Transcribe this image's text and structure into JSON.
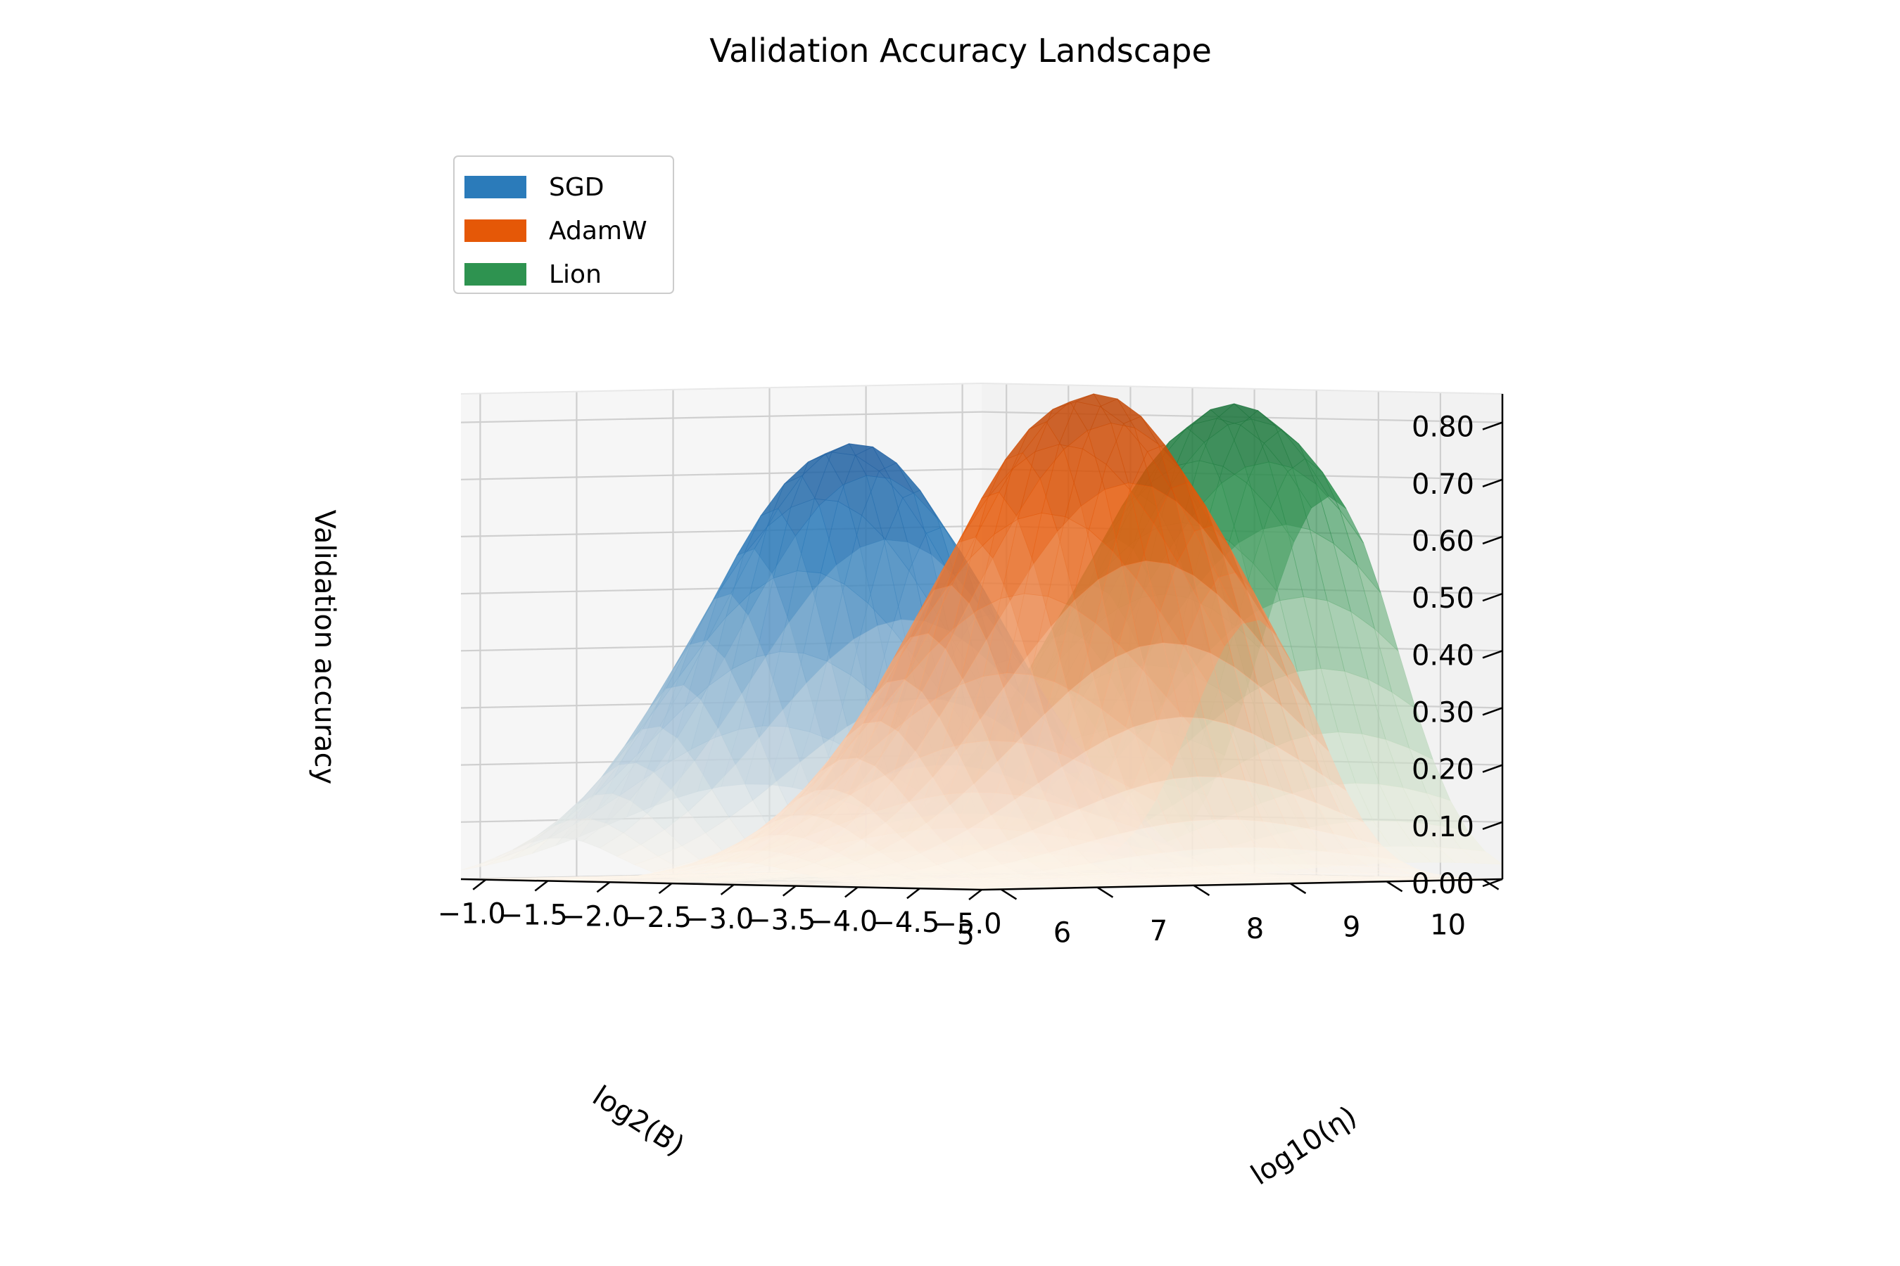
{
  "chart_data": {
    "type": "surface3d",
    "title": "Validation Accuracy Landscape",
    "xlabel": "log10(η)",
    "ylabel": "log2(B)",
    "zlabel": "Validation accuracy",
    "xlim": [
      -5.0,
      -0.8
    ],
    "ylim": [
      4.8,
      10.2
    ],
    "zlim": [
      0.0,
      0.85
    ],
    "x_ticks": [
      -5.0,
      -4.5,
      -4.0,
      -3.5,
      -3.0,
      -2.5,
      -2.0,
      -1.5,
      -1.0
    ],
    "x_tick_labels": [
      "−5.0",
      "−4.5",
      "−4.0",
      "−3.5",
      "−3.0",
      "−2.5",
      "−2.0",
      "−1.5",
      "−1.0"
    ],
    "y_ticks": [
      5,
      6,
      7,
      8,
      9,
      10
    ],
    "y_tick_labels": [
      "5",
      "6",
      "7",
      "8",
      "9",
      "10"
    ],
    "z_ticks": [
      0.0,
      0.1,
      0.2,
      0.3,
      0.4,
      0.5,
      0.6,
      0.7,
      0.8
    ],
    "z_tick_labels": [
      "0.00",
      "0.10",
      "0.20",
      "0.30",
      "0.40",
      "0.50",
      "0.60",
      "0.70",
      "0.80"
    ],
    "grid": true,
    "legend_position": "top-left",
    "series": [
      {
        "name": "SGD",
        "color": "#2b7bba",
        "peak_x": -1.6,
        "peak_y": 7.8,
        "peak_z": 0.76,
        "sigma_x": 0.45,
        "sigma_y": 1.4
      },
      {
        "name": "AdamW",
        "color": "#e55807",
        "peak_x": -3.0,
        "peak_y": 8.5,
        "peak_z": 0.85,
        "sigma_x": 0.5,
        "sigma_y": 1.5
      },
      {
        "name": "Lion",
        "color": "#2e9350",
        "peak_x": -3.6,
        "peak_y": 9.2,
        "peak_z": 0.83,
        "sigma_x": 0.55,
        "sigma_y": 1.5
      }
    ]
  }
}
